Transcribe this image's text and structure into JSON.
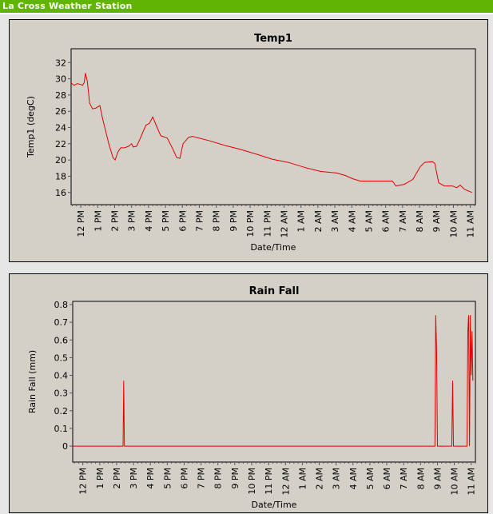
{
  "page": {
    "title": "La Cross Weather Station"
  },
  "colors": {
    "header": "#5fb404",
    "line": "#e00000",
    "panel": "#d4d0c8"
  },
  "chart_data": [
    {
      "type": "line",
      "title": "Temp1",
      "xlabel": "Date/Time",
      "ylabel": "Temp1 (degC)",
      "x_unit": "hours since 12 PM",
      "x_ticks": [
        "12 PM",
        "1 PM",
        "2 PM",
        "3 PM",
        "4 PM",
        "5 PM",
        "6 PM",
        "7 PM",
        "8 PM",
        "9 PM",
        "10 PM",
        "11 PM",
        "12 AM",
        "1 AM",
        "2 AM",
        "3 AM",
        "4 AM",
        "5 AM",
        "6 AM",
        "7 AM",
        "8 AM",
        "9 AM",
        "10 AM",
        "11 AM"
      ],
      "y_ticks": [
        "16",
        "18",
        "20",
        "22",
        "24",
        "26",
        "28",
        "30",
        "32"
      ],
      "ylim": [
        14.5,
        33.7
      ],
      "xlim": [
        -0.57,
        23.3
      ],
      "series": [
        {
          "name": "Temp1",
          "points": [
            [
              -0.57,
              29.5
            ],
            [
              -0.4,
              29.2
            ],
            [
              -0.2,
              29.4
            ],
            [
              0,
              29.3
            ],
            [
              0.1,
              29.2
            ],
            [
              0.2,
              29.5
            ],
            [
              0.28,
              30.7
            ],
            [
              0.33,
              30.2
            ],
            [
              0.38,
              29.8
            ],
            [
              0.45,
              28.5
            ],
            [
              0.52,
              27
            ],
            [
              0.7,
              26.3
            ],
            [
              0.9,
              26.4
            ],
            [
              1.13,
              26.7
            ],
            [
              1.3,
              25
            ],
            [
              1.5,
              23.3
            ],
            [
              1.65,
              22
            ],
            [
              1.9,
              20.3
            ],
            [
              2.03,
              20
            ],
            [
              2.2,
              21
            ],
            [
              2.36,
              21.5
            ],
            [
              2.6,
              21.5
            ],
            [
              2.83,
              21.7
            ],
            [
              3.0,
              22
            ],
            [
              3.1,
              21.6
            ],
            [
              3.3,
              21.7
            ],
            [
              3.5,
              22.6
            ],
            [
              3.68,
              23.5
            ],
            [
              3.85,
              24.3
            ],
            [
              4.05,
              24.5
            ],
            [
              4.25,
              25.3
            ],
            [
              4.45,
              24.3
            ],
            [
              4.72,
              23
            ],
            [
              5.1,
              22.7
            ],
            [
              5.4,
              21.5
            ],
            [
              5.66,
              20.3
            ],
            [
              5.85,
              20.2
            ],
            [
              6.04,
              22
            ],
            [
              6.37,
              22.8
            ],
            [
              6.6,
              22.9
            ],
            [
              7.55,
              22.4
            ],
            [
              8.5,
              21.8
            ],
            [
              9.43,
              21.3
            ],
            [
              10.4,
              20.7
            ],
            [
              11.3,
              20.1
            ],
            [
              12.26,
              19.7
            ],
            [
              13.2,
              19.1
            ],
            [
              14.15,
              18.6
            ],
            [
              14.6,
              18.5
            ],
            [
              15.1,
              18.4
            ],
            [
              15.6,
              18.1
            ],
            [
              16.04,
              17.7
            ],
            [
              16.5,
              17.4
            ],
            [
              18.4,
              17.4
            ],
            [
              18.6,
              16.8
            ],
            [
              19.1,
              17
            ],
            [
              19.6,
              17.6
            ],
            [
              20.05,
              19.2
            ],
            [
              20.3,
              19.7
            ],
            [
              20.75,
              19.8
            ],
            [
              20.9,
              19.6
            ],
            [
              21.13,
              17.2
            ],
            [
              21.46,
              16.8
            ],
            [
              21.93,
              16.8
            ],
            [
              22.2,
              16.6
            ],
            [
              22.4,
              16.9
            ],
            [
              22.65,
              16.4
            ],
            [
              23.1,
              16
            ]
          ]
        }
      ]
    },
    {
      "type": "line",
      "title": "Rain Fall",
      "xlabel": "Date/Time",
      "ylabel": "Rain Fall (mm)",
      "x_unit": "hours since 12 PM",
      "x_ticks": [
        "12 PM",
        "1 PM",
        "2 PM",
        "3 PM",
        "4 PM",
        "5 PM",
        "6 PM",
        "7 PM",
        "8 PM",
        "9 PM",
        "10 PM",
        "11 PM",
        "12 AM",
        "1 AM",
        "2 AM",
        "3 AM",
        "4 AM",
        "5 AM",
        "6 AM",
        "7 AM",
        "8 AM",
        "9 AM",
        "10 AM",
        "11 AM"
      ],
      "y_ticks": [
        "0",
        "0.1",
        "0.2",
        "0.3",
        "0.4",
        "0.5",
        "0.6",
        "0.7",
        "0.8"
      ],
      "ylim": [
        -0.09,
        0.818
      ],
      "xlim": [
        -0.6,
        23.25
      ],
      "series": [
        {
          "name": "Rain Fall",
          "points": [
            [
              -0.6,
              0
            ],
            [
              2.38,
              0
            ],
            [
              2.42,
              0.37
            ],
            [
              2.46,
              0
            ],
            [
              20.85,
              0
            ],
            [
              20.9,
              0.74
            ],
            [
              20.95,
              0.55
            ],
            [
              21.0,
              0
            ],
            [
              21.85,
              0
            ],
            [
              21.9,
              0.37
            ],
            [
              21.95,
              0
            ],
            [
              22.75,
              0
            ],
            [
              22.8,
              0.65
            ],
            [
              22.85,
              0.74
            ],
            [
              22.9,
              0
            ],
            [
              22.95,
              0.74
            ],
            [
              23.0,
              0.4
            ],
            [
              23.05,
              0.65
            ],
            [
              23.1,
              0.37
            ]
          ]
        }
      ]
    }
  ]
}
